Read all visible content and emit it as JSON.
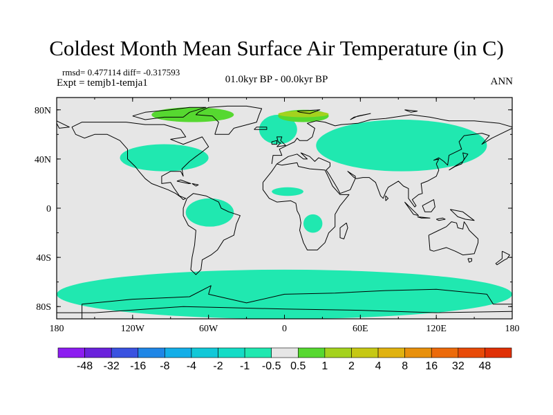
{
  "chart_data": {
    "type": "heatmap",
    "title": "Coldest Month Mean Surface Air Temperature (in C)",
    "stats_text": "rmsd= 0.477114 diff= -0.317593",
    "expt_text": "Expt = temjb1-temja1",
    "period_text": "01.0kyr BP - 00.0kyr BP",
    "season_text": "ANN",
    "projection": "cylindrical equidistant",
    "xlim": [
      -180,
      180
    ],
    "ylim": [
      -90,
      90
    ],
    "x_ticks": [
      {
        "value": -180,
        "label": "180"
      },
      {
        "value": -120,
        "label": "120W"
      },
      {
        "value": -60,
        "label": "60W"
      },
      {
        "value": 0,
        "label": "0"
      },
      {
        "value": 60,
        "label": "60E"
      },
      {
        "value": 120,
        "label": "120E"
      },
      {
        "value": 180,
        "label": "180"
      }
    ],
    "y_ticks": [
      {
        "value": 80,
        "label": "80N"
      },
      {
        "value": 40,
        "label": "40N"
      },
      {
        "value": 0,
        "label": "0"
      },
      {
        "value": -40,
        "label": "40S"
      },
      {
        "value": -80,
        "label": "80S"
      }
    ],
    "colorbar": {
      "levels": [
        "-48",
        "-32",
        "-16",
        "-8",
        "-4",
        "-2",
        "-1",
        "-0.5",
        "0.5",
        "1",
        "2",
        "4",
        "8",
        "16",
        "32",
        "48"
      ],
      "colors": [
        "#8c1df0",
        "#6a22dc",
        "#3a52e0",
        "#1f86e6",
        "#14aee8",
        "#12c8d8",
        "#14dcc6",
        "#20e8b0",
        "#e6e6e6",
        "#56d830",
        "#a4d21e",
        "#c6c814",
        "#e0b210",
        "#e8900c",
        "#ec6a0a",
        "#e84a08",
        "#e03006"
      ]
    },
    "regions": [
      {
        "level": "-1 to -0.5",
        "color": "#20e8b0",
        "lon": [
          -130,
          -60
        ],
        "lat": [
          30,
          52
        ]
      },
      {
        "level": "-1 to -0.5",
        "color": "#20e8b0",
        "lon": [
          -20,
          10
        ],
        "lat": [
          52,
          76
        ]
      },
      {
        "level": "-1 to -0.5",
        "color": "#20e8b0",
        "lon": [
          25,
          160
        ],
        "lat": [
          30,
          72
        ]
      },
      {
        "level": "-1 to -0.5",
        "color": "#20e8b0",
        "lon": [
          -78,
          -40
        ],
        "lat": [
          -15,
          8
        ]
      },
      {
        "level": "-1 to -0.5",
        "color": "#20e8b0",
        "lon": [
          15,
          30
        ],
        "lat": [
          -20,
          -5
        ]
      },
      {
        "level": "-1 to -0.5",
        "color": "#20e8b0",
        "lon": [
          -10,
          15
        ],
        "lat": [
          10,
          17
        ]
      },
      {
        "level": "-1 to -0.5",
        "color": "#20e8b0",
        "lon": [
          -180,
          180
        ],
        "lat": [
          -90,
          -50
        ]
      },
      {
        "level": "0.5 to 1",
        "color": "#56d830",
        "lon": [
          -105,
          -40
        ],
        "lat": [
          70,
          82
        ]
      },
      {
        "level": "0.5 to 1",
        "color": "#56d830",
        "lon": [
          -5,
          35
        ],
        "lat": [
          70,
          80
        ]
      },
      {
        "level": "1 to 2",
        "color": "#a4d21e",
        "lon": [
          -5,
          35
        ],
        "lat": [
          74,
          79
        ]
      }
    ]
  }
}
